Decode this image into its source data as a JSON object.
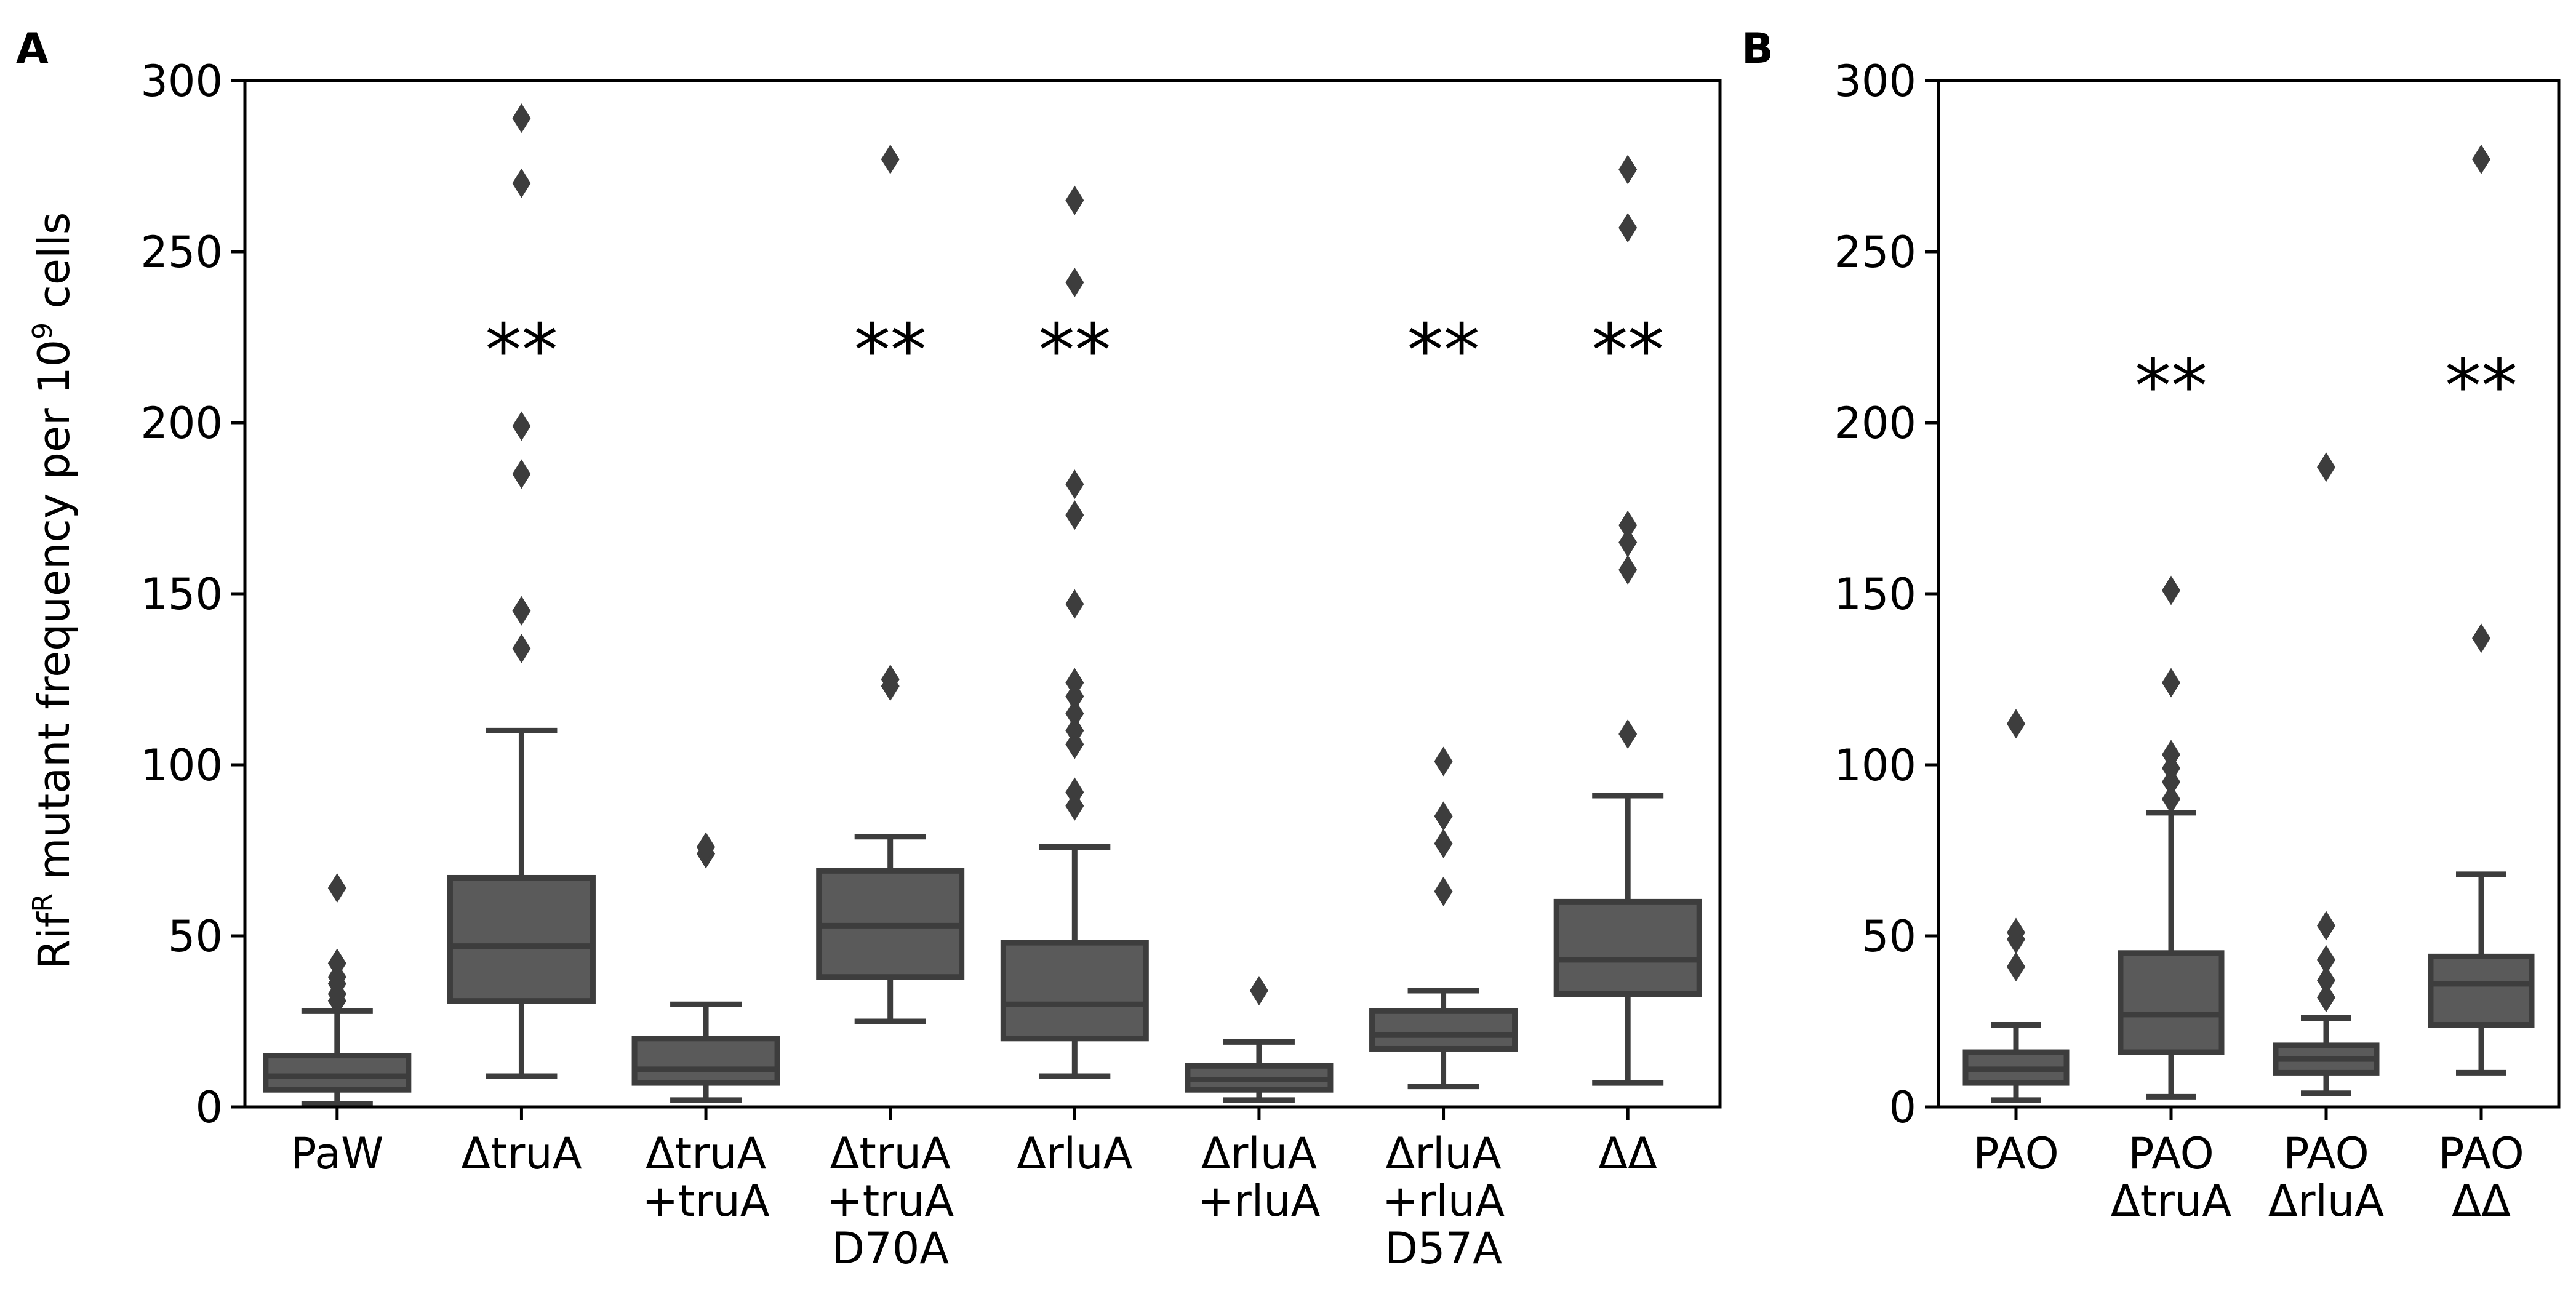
{
  "figure": {
    "ylabel_main": "Rif",
    "ylabel_sup": "R",
    "ylabel_mid": " mutant frequency per 10",
    "ylabel_exp": "9",
    "ylabel_end": " cells"
  },
  "colors": {
    "box": "#5a5a5a",
    "line": "#3d3d3d"
  },
  "chart_data": [
    {
      "panel": "A",
      "type": "box",
      "ylim": [
        0,
        300
      ],
      "yticks": [
        0,
        50,
        100,
        150,
        200,
        250,
        300
      ],
      "categories": [
        {
          "lines": [
            "PaW"
          ],
          "whislo": 1,
          "q1": 5,
          "median": 9,
          "q3": 15,
          "whishi": 28,
          "fliers": [
            31,
            33,
            36,
            38,
            42,
            64
          ],
          "sig": ""
        },
        {
          "lines": [
            "ΔtruA"
          ],
          "whislo": 9,
          "q1": 31,
          "median": 47,
          "q3": 67,
          "whishi": 110,
          "fliers": [
            134,
            145,
            185,
            199,
            270,
            289
          ],
          "sig": "**"
        },
        {
          "lines": [
            "ΔtruA",
            "+truA"
          ],
          "whislo": 2,
          "q1": 7,
          "median": 11,
          "q3": 20,
          "whishi": 30,
          "fliers": [
            74,
            76
          ],
          "sig": ""
        },
        {
          "lines": [
            "ΔtruA",
            "+truA",
            "D70A"
          ],
          "whislo": 25,
          "q1": 38,
          "median": 53,
          "q3": 69,
          "whishi": 79,
          "fliers": [
            123,
            125,
            277
          ],
          "sig": "**"
        },
        {
          "lines": [
            "ΔrluA"
          ],
          "whislo": 9,
          "q1": 20,
          "median": 30,
          "q3": 48,
          "whishi": 76,
          "fliers": [
            88,
            92,
            106,
            110,
            115,
            120,
            124,
            147,
            173,
            182,
            241,
            265
          ],
          "sig": "**"
        },
        {
          "lines": [
            "ΔrluA",
            "+rluA"
          ],
          "whislo": 2,
          "q1": 5,
          "median": 8,
          "q3": 12,
          "whishi": 19,
          "fliers": [
            34
          ],
          "sig": ""
        },
        {
          "lines": [
            "ΔrluA",
            "+rluA",
            "D57A"
          ],
          "whislo": 6,
          "q1": 17,
          "median": 21,
          "q3": 28,
          "whishi": 34,
          "fliers": [
            63,
            77,
            85,
            101
          ],
          "sig": "**"
        },
        {
          "lines": [
            "ΔΔ"
          ],
          "whislo": 7,
          "q1": 33,
          "median": 43,
          "q3": 60,
          "whishi": 91,
          "fliers": [
            109,
            157,
            165,
            170,
            257,
            274
          ],
          "sig": "**"
        }
      ]
    },
    {
      "panel": "B",
      "type": "box",
      "ylim": [
        0,
        300
      ],
      "yticks": [
        0,
        50,
        100,
        150,
        200,
        250,
        300
      ],
      "categories": [
        {
          "lines": [
            "PAO"
          ],
          "whislo": 2,
          "q1": 7,
          "median": 11,
          "q3": 16,
          "whishi": 24,
          "fliers": [
            41,
            49,
            51,
            112
          ],
          "sig": ""
        },
        {
          "lines": [
            "PAO",
            "ΔtruA"
          ],
          "whislo": 3,
          "q1": 16,
          "median": 27,
          "q3": 45,
          "whishi": 86,
          "fliers": [
            90,
            95,
            99,
            103,
            124,
            151
          ],
          "sig": "**"
        },
        {
          "lines": [
            "PAO",
            "ΔrluA"
          ],
          "whislo": 4,
          "q1": 10,
          "median": 14,
          "q3": 18,
          "whishi": 26,
          "fliers": [
            32,
            37,
            43,
            53,
            187
          ],
          "sig": ""
        },
        {
          "lines": [
            "PAO",
            "ΔΔ"
          ],
          "whislo": 10,
          "q1": 24,
          "median": 36,
          "q3": 44,
          "whishi": 68,
          "fliers": [
            137,
            277
          ],
          "sig": "**"
        }
      ]
    }
  ]
}
